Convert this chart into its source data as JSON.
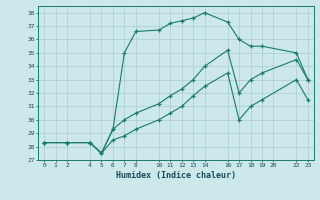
{
  "xlabel": "Humidex (Indice chaleur)",
  "background_color": "#cce8ea",
  "grid_color": "#aacccc",
  "line_color": "#1a7a6e",
  "ylim": [
    27,
    38.5
  ],
  "xlim": [
    -0.5,
    23.5
  ],
  "yticks": [
    27,
    28,
    29,
    30,
    31,
    32,
    33,
    34,
    35,
    36,
    37,
    38
  ],
  "xticks": [
    0,
    1,
    2,
    4,
    5,
    6,
    7,
    8,
    10,
    11,
    12,
    13,
    14,
    16,
    17,
    18,
    19,
    20,
    22,
    23
  ],
  "line1_x": [
    0,
    2,
    4,
    5,
    6,
    7,
    8,
    10,
    11,
    12,
    13,
    14,
    16,
    17,
    18,
    19,
    22,
    23
  ],
  "line1_y": [
    28.3,
    28.3,
    28.3,
    27.5,
    29.3,
    35.0,
    36.6,
    36.7,
    37.2,
    37.4,
    37.6,
    38.0,
    37.3,
    36.0,
    35.5,
    35.5,
    35.0,
    33.0
  ],
  "line2_x": [
    0,
    2,
    4,
    5,
    6,
    7,
    8,
    10,
    11,
    12,
    13,
    14,
    16,
    17,
    18,
    19,
    22,
    23
  ],
  "line2_y": [
    28.3,
    28.3,
    28.3,
    27.5,
    29.3,
    30.0,
    30.5,
    31.2,
    31.8,
    32.3,
    33.0,
    34.0,
    35.2,
    32.0,
    33.0,
    33.5,
    34.5,
    33.0
  ],
  "line3_x": [
    0,
    2,
    4,
    5,
    6,
    7,
    8,
    10,
    11,
    12,
    13,
    14,
    16,
    17,
    18,
    19,
    22,
    23
  ],
  "line3_y": [
    28.3,
    28.3,
    28.3,
    27.5,
    28.5,
    28.8,
    29.3,
    30.0,
    30.5,
    31.0,
    31.8,
    32.5,
    33.5,
    30.0,
    31.0,
    31.5,
    33.0,
    31.5
  ]
}
